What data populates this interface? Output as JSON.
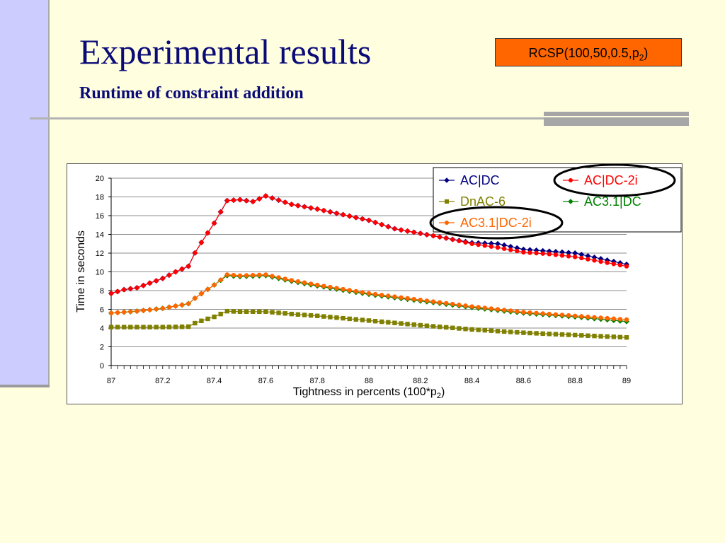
{
  "slide": {
    "title": "Experimental results",
    "subtitle": "Runtime of constraint addition",
    "badge_text": "RCSP(100,50,0.5,p",
    "badge_sub": "2",
    "badge_close": ")",
    "badge_color": "#FF6600",
    "title_color": "#0B0B78"
  },
  "chart_data": {
    "type": "line",
    "xlabel": "Tightness in percents (100*p",
    "xlabel_sub": "2",
    "xlabel_close": ")",
    "ylabel": "Time in seconds",
    "xlim": [
      87,
      89
    ],
    "ylim": [
      0,
      20
    ],
    "x_ticks": [
      "87",
      "87.2",
      "87.4",
      "87.6",
      "87.8",
      "88",
      "88.2",
      "88.4",
      "88.6",
      "88.8",
      "89"
    ],
    "y_ticks": [
      "0",
      "2",
      "4",
      "6",
      "8",
      "10",
      "12",
      "14",
      "16",
      "18",
      "20"
    ],
    "grid": "horizontal",
    "legend_position": "top-right",
    "highlighted_series": [
      "AC|DC-2i",
      "AC3.1|DC-2i"
    ],
    "highlight_color": "#000000",
    "series": [
      {
        "name": "AC|DC",
        "color": "#000080",
        "marker": "diamond",
        "anchors_x": [
          87,
          87.05,
          87.1,
          87.15,
          87.2,
          87.25,
          87.3,
          87.33,
          87.4,
          87.45,
          87.5,
          87.55,
          87.6,
          87.7,
          87.8,
          88,
          88.1,
          88.2,
          88.3,
          88.4,
          88.5,
          88.6,
          88.7,
          88.8,
          88.9,
          89
        ],
        "anchors_y": [
          7.7,
          8.1,
          8.3,
          8.8,
          9.3,
          10.0,
          10.6,
          12.3,
          15.2,
          17.6,
          17.7,
          17.5,
          18.1,
          17.2,
          16.7,
          15.5,
          14.6,
          14.1,
          13.6,
          13.1,
          13.0,
          12.4,
          12.2,
          12.0,
          11.4,
          10.8
        ]
      },
      {
        "name": "AC|DC-2i",
        "color": "#FF0000",
        "marker": "circle",
        "anchors_x": [
          87,
          87.05,
          87.1,
          87.15,
          87.2,
          87.25,
          87.3,
          87.33,
          87.4,
          87.45,
          87.5,
          87.55,
          87.6,
          87.7,
          87.8,
          88,
          88.1,
          88.2,
          88.3,
          88.4,
          88.5,
          88.6,
          88.7,
          88.8,
          88.9,
          89
        ],
        "anchors_y": [
          7.7,
          8.1,
          8.3,
          8.8,
          9.3,
          10.0,
          10.6,
          12.3,
          15.2,
          17.6,
          17.7,
          17.5,
          18.1,
          17.2,
          16.7,
          15.5,
          14.6,
          14.1,
          13.6,
          13.0,
          12.6,
          12.1,
          11.9,
          11.6,
          11.1,
          10.6
        ]
      },
      {
        "name": "DnAC-6",
        "color": "#808000",
        "marker": "square",
        "anchors_x": [
          87,
          87.1,
          87.2,
          87.3,
          87.33,
          87.4,
          87.45,
          87.5,
          87.6,
          87.7,
          87.8,
          88,
          88.2,
          88.4,
          88.6,
          88.8,
          89
        ],
        "anchors_y": [
          4.1,
          4.1,
          4.1,
          4.15,
          4.6,
          5.2,
          5.8,
          5.75,
          5.75,
          5.5,
          5.3,
          4.8,
          4.3,
          3.85,
          3.5,
          3.25,
          3.0
        ]
      },
      {
        "name": "AC3.1|DC",
        "color": "#008000",
        "marker": "diamond",
        "anchors_x": [
          87,
          87.1,
          87.2,
          87.3,
          87.33,
          87.4,
          87.45,
          87.5,
          87.6,
          87.7,
          87.8,
          88,
          88.2,
          88.4,
          88.6,
          88.8,
          89
        ],
        "anchors_y": [
          5.6,
          5.8,
          6.1,
          6.6,
          7.3,
          8.6,
          9.6,
          9.5,
          9.6,
          9.0,
          8.5,
          7.6,
          6.9,
          6.2,
          5.6,
          5.2,
          4.7
        ]
      },
      {
        "name": "AC3.1|DC-2i",
        "color": "#FF6600",
        "marker": "circle",
        "anchors_x": [
          87,
          87.1,
          87.2,
          87.3,
          87.33,
          87.4,
          87.45,
          87.5,
          87.6,
          87.7,
          87.8,
          88,
          88.2,
          88.4,
          88.6,
          88.8,
          89
        ],
        "anchors_y": [
          5.6,
          5.8,
          6.1,
          6.6,
          7.3,
          8.6,
          9.7,
          9.6,
          9.7,
          9.1,
          8.6,
          7.7,
          7.0,
          6.3,
          5.7,
          5.3,
          4.9
        ]
      }
    ]
  }
}
